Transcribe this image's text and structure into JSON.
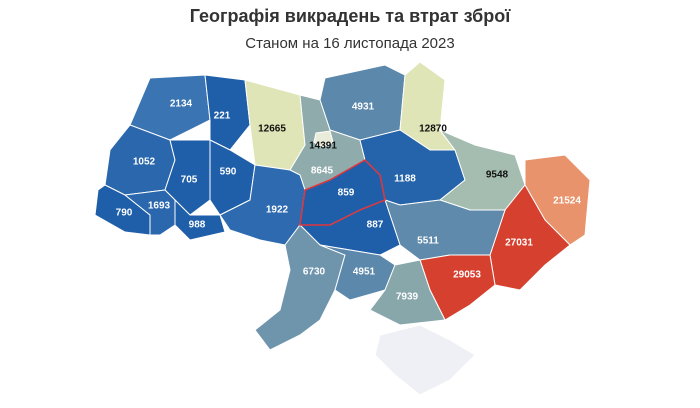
{
  "title": "Географія викрадень та втрат зброї",
  "subtitle": "Станом на 16 листопада 2023",
  "map": {
    "regions": [
      {
        "value": 2134,
        "color": "#3a74b3"
      },
      {
        "value": 221,
        "color": "#1f5ea8"
      },
      {
        "value": 12665,
        "color": "#dfe5b6"
      },
      {
        "value": 4931,
        "color": "#5b88ab"
      },
      {
        "value": 12870,
        "color": "#dfe5b6"
      },
      {
        "value": 8645,
        "color": "#8fabab"
      },
      {
        "value": 14391,
        "color": "#e9ecd9"
      },
      {
        "value": 1052,
        "color": "#2a67ad"
      },
      {
        "value": 705,
        "color": "#1f5ea8"
      },
      {
        "value": 590,
        "color": "#1f5ea8"
      },
      {
        "value": 790,
        "color": "#1f5ea8"
      },
      {
        "value": 1693,
        "color": "#2a67ad"
      },
      {
        "value": 988,
        "color": "#1f5ea8"
      },
      {
        "value": 1922,
        "color": "#2e6aaf"
      },
      {
        "value": 859,
        "color": "#1f5ea8",
        "outlined": true
      },
      {
        "value": 1188,
        "color": "#2563aa"
      },
      {
        "value": 9548,
        "color": "#a5bdb0"
      },
      {
        "value": 21524,
        "color": "#e8936c"
      },
      {
        "value": 27031,
        "color": "#d6402f"
      },
      {
        "value": 5511,
        "color": "#5f8aab"
      },
      {
        "value": 887,
        "color": "#1f5ea8"
      },
      {
        "value": 6730,
        "color": "#6f95ad"
      },
      {
        "value": 4951,
        "color": "#5b88ab"
      },
      {
        "value": 29053,
        "color": "#d6402f"
      },
      {
        "value": 7939,
        "color": "#88a7ab"
      },
      {
        "value": null,
        "color": "#eef0f5"
      }
    ]
  }
}
